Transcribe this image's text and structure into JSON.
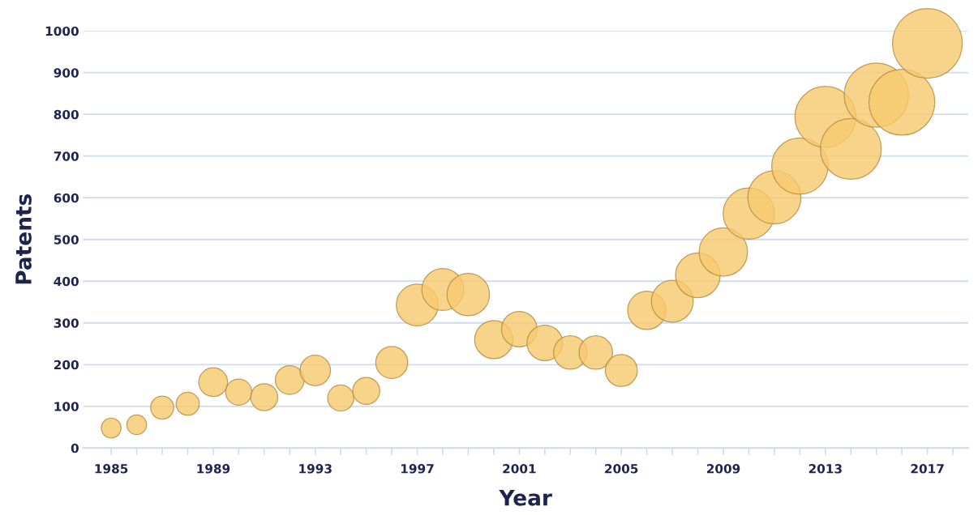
{
  "chart_data": {
    "type": "bubble",
    "xlabel": "Year",
    "ylabel": "Patents",
    "x": [
      1985,
      1986,
      1987,
      1988,
      1989,
      1990,
      1991,
      1992,
      1993,
      1994,
      1995,
      1996,
      1997,
      1998,
      1999,
      2000,
      2001,
      2002,
      2003,
      2004,
      2005,
      2006,
      2007,
      2008,
      2009,
      2010,
      2011,
      2012,
      2013,
      2014,
      2015,
      2016,
      2017
    ],
    "values": [
      48,
      56,
      97,
      106,
      158,
      134,
      122,
      163,
      186,
      120,
      137,
      205,
      343,
      380,
      368,
      260,
      285,
      252,
      229,
      229,
      186,
      330,
      352,
      414,
      470,
      562,
      601,
      676,
      794,
      717,
      846,
      829,
      970
    ],
    "sizes": [
      0.08,
      0.08,
      0.11,
      0.11,
      0.17,
      0.14,
      0.15,
      0.17,
      0.19,
      0.14,
      0.15,
      0.21,
      0.36,
      0.36,
      0.37,
      0.3,
      0.26,
      0.26,
      0.23,
      0.23,
      0.21,
      0.3,
      0.36,
      0.41,
      0.48,
      0.54,
      0.58,
      0.65,
      0.76,
      0.76,
      0.85,
      0.89,
      1
    ],
    "color": "#f6c96e",
    "xlim": [
      1983.9,
      2018.6
    ],
    "xticks": [
      1985,
      {
        "value": 1986,
        "label": null
      },
      {
        "value": 1987,
        "label": null
      },
      {
        "value": 1988,
        "label": null
      },
      1989,
      {
        "value": 1990,
        "label": null
      },
      {
        "value": 1991,
        "label": null
      },
      {
        "value": 1992,
        "label": null
      },
      1993,
      {
        "value": 1994,
        "label": null
      },
      {
        "value": 1995,
        "label": null
      },
      {
        "value": 1996,
        "label": null
      },
      1997,
      {
        "value": 1998,
        "label": null
      },
      {
        "value": 1999,
        "label": null
      },
      {
        "value": 2000,
        "label": null
      },
      2001,
      {
        "value": 2002,
        "label": null
      },
      {
        "value": 2003,
        "label": null
      },
      {
        "value": 2004,
        "label": null
      },
      2005,
      {
        "value": 2006,
        "label": null
      },
      {
        "value": 2007,
        "label": null
      },
      {
        "value": 2008,
        "label": null
      },
      2009,
      {
        "value": 2010,
        "label": null
      },
      {
        "value": 2011,
        "label": null
      },
      {
        "value": 2012,
        "label": null
      },
      2013,
      {
        "value": 2014,
        "label": null
      },
      {
        "value": 2015,
        "label": null
      },
      {
        "value": 2016,
        "label": null
      },
      2017,
      {
        "value": 2018,
        "label": null
      }
    ],
    "ylim": [
      0,
      1000
    ],
    "yticks": [
      0,
      100,
      200,
      300,
      400,
      500,
      600,
      700,
      800,
      900,
      1000
    ],
    "grid": "y",
    "legend": false
  }
}
